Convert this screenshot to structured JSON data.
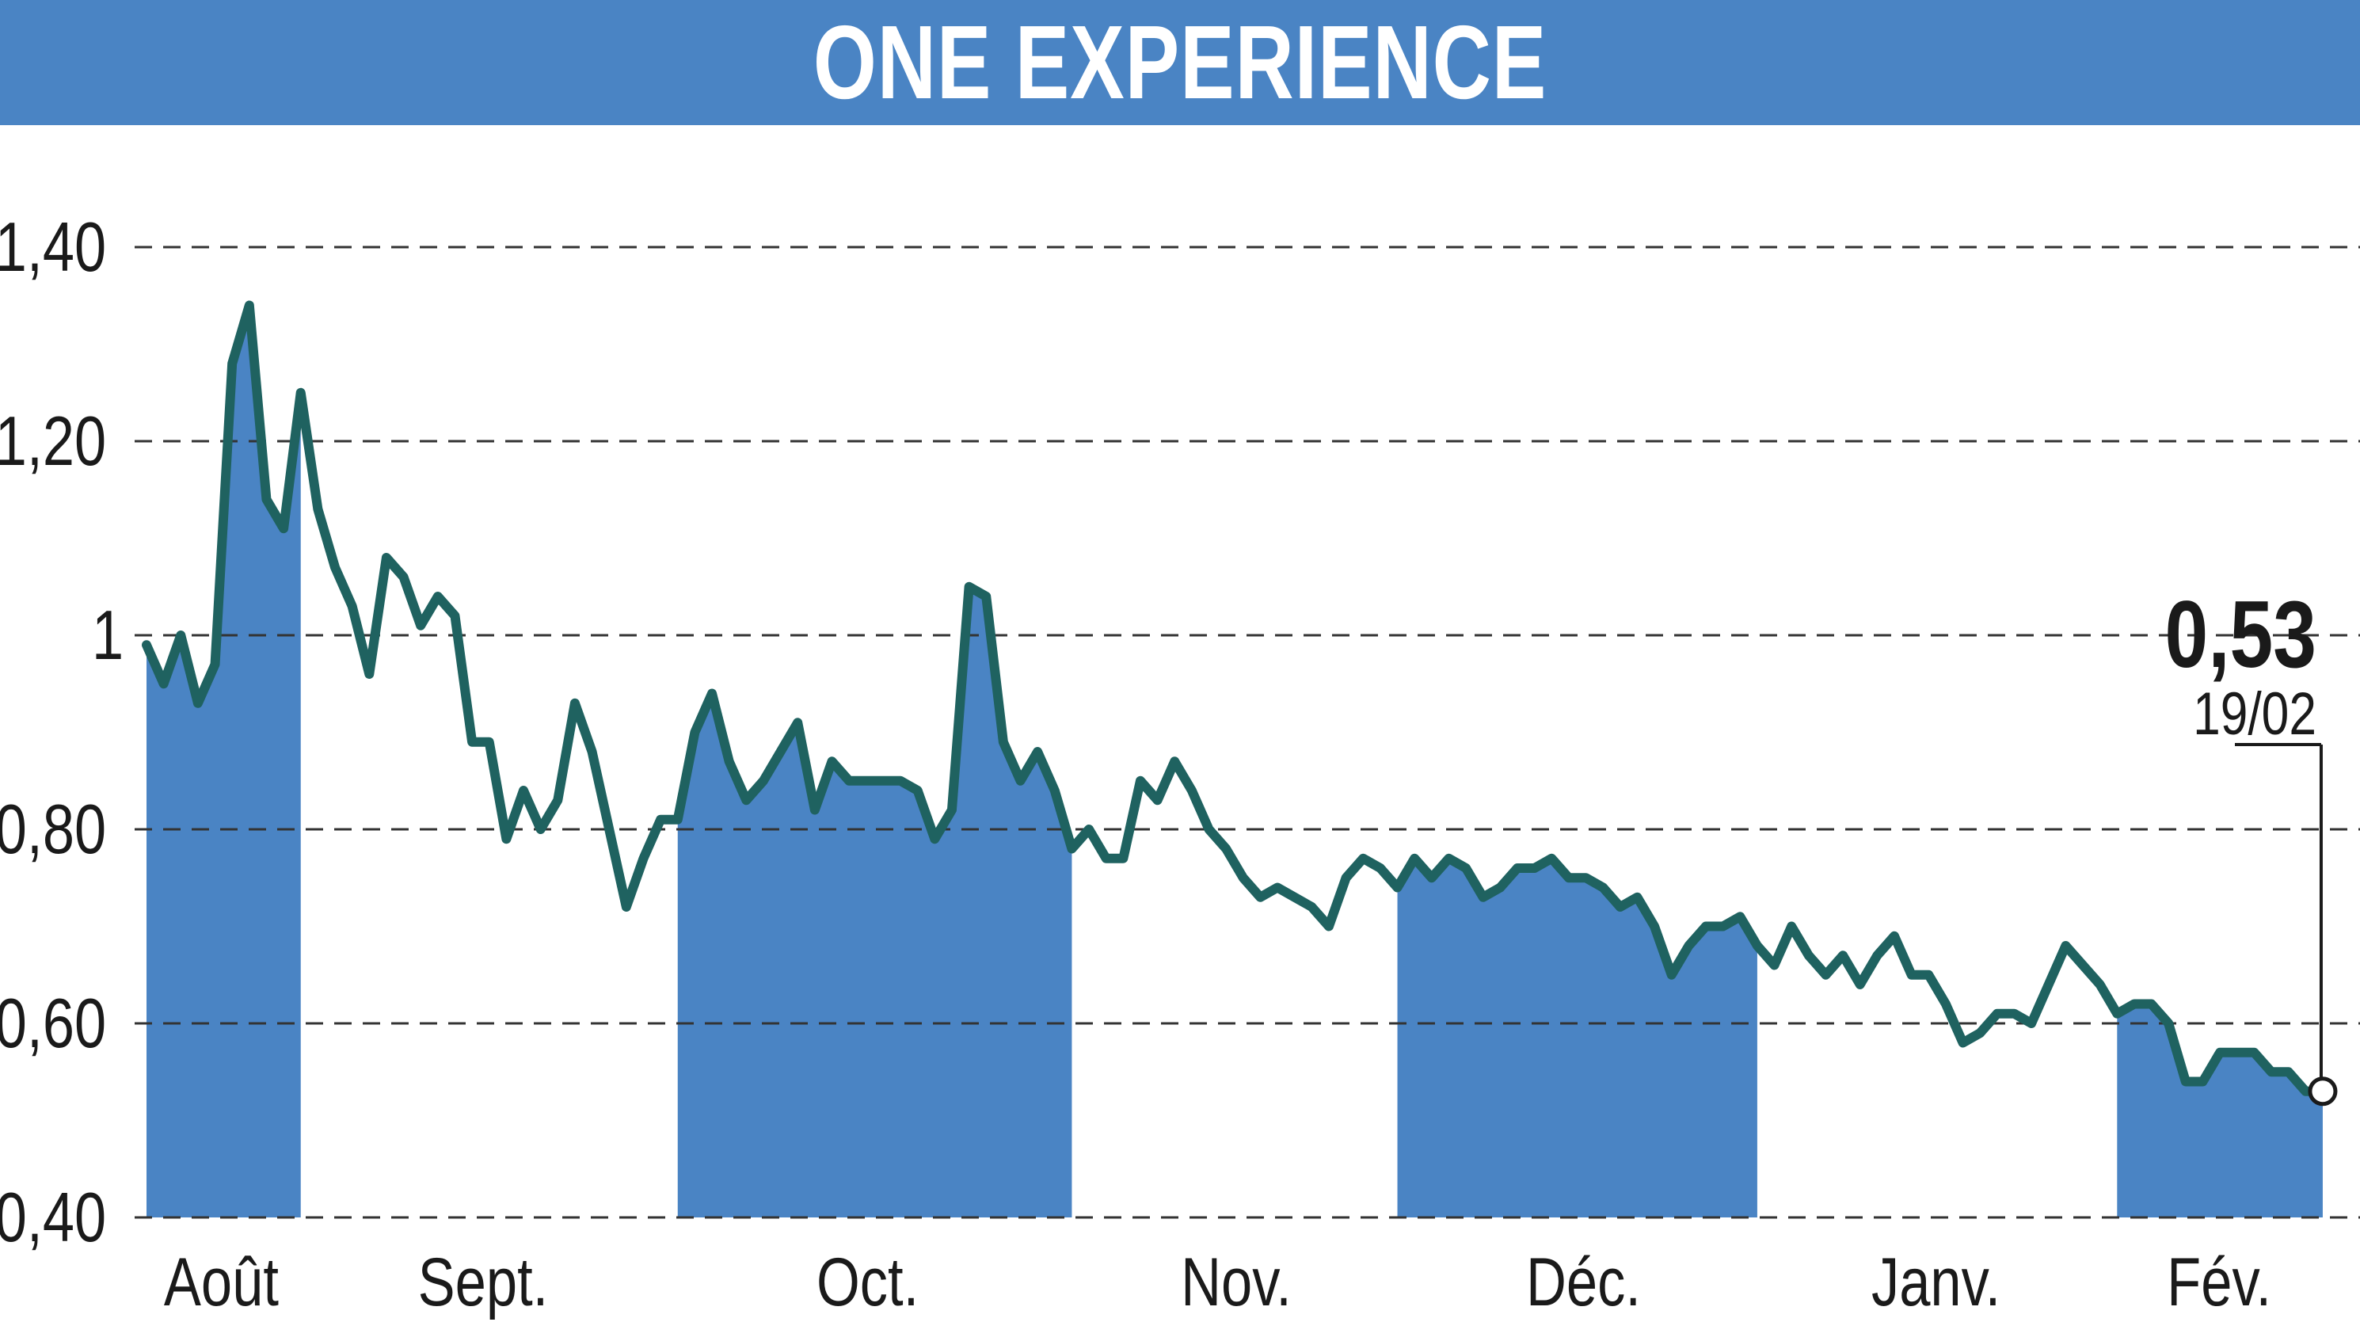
{
  "title": "ONE EXPERIENCE",
  "last_value_label": "0,53",
  "last_date_label": "19/02",
  "colors": {
    "header": "#4a84c4",
    "band": "#4a84c4",
    "line": "#1f6260",
    "grid": "#333333",
    "background": "#ffffff"
  },
  "chart_data": {
    "type": "line",
    "title": "ONE EXPERIENCE",
    "xlabel": "",
    "ylabel": "",
    "ylim": [
      0.4,
      1.4
    ],
    "yticks": [
      {
        "value": 0.4,
        "label": "0,40"
      },
      {
        "value": 0.6,
        "label": "0,60"
      },
      {
        "value": 0.8,
        "label": "0,80"
      },
      {
        "value": 1.0,
        "label": "1"
      },
      {
        "value": 1.2,
        "label": "1,20"
      },
      {
        "value": 1.4,
        "label": "1,40"
      }
    ],
    "grid": true,
    "months": [
      {
        "label": "Août",
        "start": 0,
        "end": 14,
        "shaded": true
      },
      {
        "label": "Sept.",
        "start": 14,
        "end": 49,
        "shaded": false
      },
      {
        "label": "Oct.",
        "start": 49,
        "end": 86,
        "shaded": true
      },
      {
        "label": "Nov.",
        "start": 86,
        "end": 118,
        "shaded": false
      },
      {
        "label": "Déc.",
        "start": 118,
        "end": 151,
        "shaded": true
      },
      {
        "label": "Janv.",
        "start": 151,
        "end": 184,
        "shaded": false
      },
      {
        "label": "Fév.",
        "start": 184,
        "end": 204,
        "shaded": true
      }
    ],
    "series": [
      {
        "values": [
          0.99,
          0.95,
          1.0,
          0.93,
          0.97,
          1.28,
          1.34,
          1.14,
          1.11,
          1.25,
          1.13,
          1.07,
          1.03,
          0.96,
          1.08,
          1.06,
          1.01,
          1.04,
          1.02,
          0.89,
          0.89,
          0.79,
          0.84,
          0.8,
          0.83,
          0.93,
          0.88,
          0.8,
          0.72,
          0.77,
          0.81,
          0.81,
          0.9,
          0.94,
          0.87,
          0.83,
          0.85,
          0.88,
          0.91,
          0.82,
          0.87,
          0.85,
          0.85,
          0.85,
          0.85,
          0.84,
          0.79,
          0.82,
          1.05,
          1.04,
          0.89,
          0.85,
          0.88,
          0.84,
          0.78,
          0.8,
          0.77,
          0.77,
          0.85,
          0.83,
          0.87,
          0.84,
          0.8,
          0.78,
          0.75,
          0.73,
          0.74,
          0.73,
          0.72,
          0.7,
          0.75,
          0.77,
          0.76,
          0.74,
          0.77,
          0.75,
          0.77,
          0.76,
          0.73,
          0.74,
          0.76,
          0.76,
          0.77,
          0.75,
          0.75,
          0.74,
          0.72,
          0.73,
          0.7,
          0.65,
          0.68,
          0.7,
          0.7,
          0.71,
          0.68,
          0.66,
          0.7,
          0.67,
          0.65,
          0.67,
          0.64,
          0.67,
          0.69,
          0.65,
          0.65,
          0.62,
          0.58,
          0.59,
          0.61,
          0.61,
          0.6,
          0.64,
          0.68,
          0.66,
          0.64,
          0.61,
          0.62,
          0.62,
          0.6,
          0.54,
          0.54,
          0.57,
          0.57,
          0.57,
          0.55,
          0.55,
          0.53,
          0.53
        ]
      }
    ]
  }
}
